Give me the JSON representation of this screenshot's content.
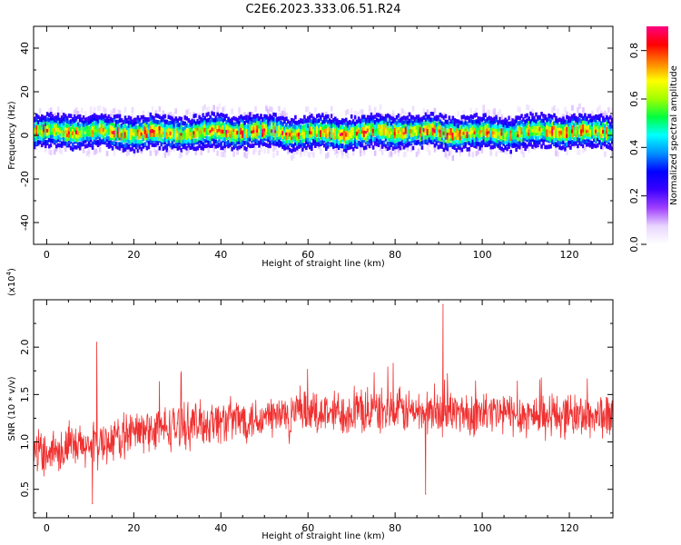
{
  "title": "C2E6.2023.333.06.51.R24",
  "chart_data": [
    {
      "type": "heatmap",
      "xlabel": "Height of straight line (km)",
      "ylabel": "Frequency (Hz)",
      "xlim": [
        -3,
        130
      ],
      "ylim": [
        -50,
        50
      ],
      "x_ticks": [
        0,
        20,
        40,
        60,
        80,
        100,
        120
      ],
      "x_tick_labels": [
        "0",
        "20",
        "40",
        "60",
        "80",
        "100",
        "120"
      ],
      "y_ticks": [
        -40,
        -20,
        0,
        20,
        40
      ],
      "y_tick_labels": [
        "-40",
        "-20",
        "0",
        "20",
        "40"
      ],
      "description_band": {
        "center_hz": 1.5,
        "half_width_hz": 7
      },
      "colorbar": {
        "label": "Normalized spectral amplitude",
        "range": [
          0,
          0.9
        ],
        "ticks": [
          0.0,
          0.2,
          0.4,
          0.6,
          0.8
        ],
        "tick_labels": [
          "0.0",
          "0.2",
          "0.4",
          "0.6",
          "0.8"
        ],
        "colors": [
          "#ffffff",
          "#e9d6ff",
          "#a040ff",
          "#3a00ff",
          "#0000ff",
          "#0090ff",
          "#00ffff",
          "#00ff40",
          "#a0ff00",
          "#ffff00",
          "#ff8000",
          "#ff0000",
          "#ff0080"
        ]
      }
    },
    {
      "type": "line",
      "xlabel": "Height of straight line (km)",
      "ylabel": "SNR (10 * v/v)",
      "multiplier_label": "(x10",
      "multiplier_exp": "4",
      "multiplier_close": ")",
      "xlim": [
        -3,
        130
      ],
      "ylim": [
        0.2,
        2.5
      ],
      "x_ticks": [
        0,
        20,
        40,
        60,
        80,
        100,
        120
      ],
      "x_tick_labels": [
        "0",
        "20",
        "40",
        "60",
        "80",
        "100",
        "120"
      ],
      "y_ticks": [
        0.5,
        1.0,
        1.5,
        2.0
      ],
      "y_tick_labels": [
        "0.5",
        "1.0",
        "1.5",
        "2.0"
      ],
      "series": [
        {
          "color": "#f03030",
          "x": [
            -3,
            0,
            3,
            6,
            9,
            10.5,
            11.5,
            12,
            13,
            15,
            18,
            20,
            25,
            30,
            35,
            40,
            45,
            50,
            55,
            60,
            65,
            70,
            75,
            80,
            85,
            87,
            90,
            91,
            95,
            100,
            105,
            110,
            115,
            120,
            125,
            130
          ],
          "y": [
            0.9,
            0.95,
            0.95,
            1.0,
            1.05,
            0.35,
            2.05,
            0.9,
            0.95,
            1.05,
            1.1,
            1.15,
            1.2,
            1.2,
            1.25,
            1.25,
            1.3,
            1.3,
            1.3,
            1.35,
            1.3,
            1.35,
            1.35,
            1.3,
            1.35,
            0.45,
            1.4,
            2.45,
            1.35,
            1.3,
            1.35,
            1.3,
            1.3,
            1.25,
            1.3,
            1.25
          ],
          "trend": [
            [
              -3,
              0.9
            ],
            [
              10,
              0.95
            ],
            [
              20,
              1.1
            ],
            [
              40,
              1.22
            ],
            [
              60,
              1.3
            ],
            [
              80,
              1.33
            ],
            [
              100,
              1.3
            ],
            [
              130,
              1.27
            ]
          ],
          "spread": 0.2
        }
      ]
    }
  ]
}
